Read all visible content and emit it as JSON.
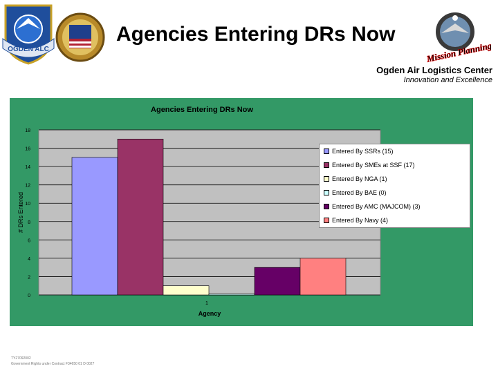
{
  "slide": {
    "title": "Agencies Entering DRs Now",
    "org_name": "Ogden Air Logistics Center",
    "tagline": "Innovation and Excellence",
    "logo_left_text": "OGDEN ALC",
    "logo_right_text": "Mission Planning",
    "footer": [
      "TY27092002",
      "Government Rights under Contract F34650 01 D 0027"
    ]
  },
  "colors": {
    "chart_area": "#339966",
    "plot_area": "#c0c0c0"
  },
  "chart_data": {
    "type": "bar",
    "title": "Agencies Entering DRs Now",
    "xlabel": "Agency",
    "ylabel": "# DRs Entered",
    "categories": [
      "1"
    ],
    "ylim": [
      0,
      18
    ],
    "yticks": [
      0,
      2,
      4,
      6,
      8,
      10,
      12,
      14,
      16,
      18
    ],
    "grid": true,
    "legend_position": "right",
    "series": [
      {
        "name": "Entered By SSRs (15)",
        "values": [
          15
        ],
        "color": "#9999ff"
      },
      {
        "name": "Entered By SMEs at SSF (17)",
        "values": [
          17
        ],
        "color": "#993366"
      },
      {
        "name": "Entered By NGA (1)",
        "values": [
          1
        ],
        "color": "#ffffcc"
      },
      {
        "name": "Entered By BAE (0)",
        "values": [
          0.1
        ],
        "color": "#ccffff"
      },
      {
        "name": "Entered By AMC (MAJCOM) (3)",
        "values": [
          3
        ],
        "color": "#660066"
      },
      {
        "name": "Entered By Navy (4)",
        "values": [
          4
        ],
        "color": "#ff8080"
      }
    ]
  }
}
